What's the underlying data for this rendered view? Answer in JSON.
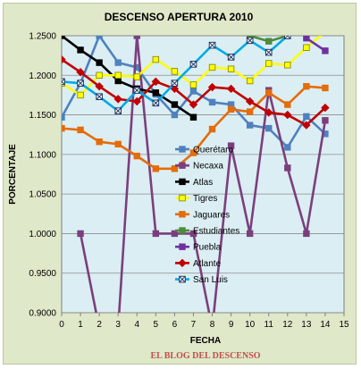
{
  "chart_data": {
    "type": "line",
    "title": "DESCENSO APERTURA 2010",
    "xlabel": "FECHA",
    "ylabel": "PORCENTAJE",
    "footer": "EL BLOG DEL DESCENSO",
    "xlim": [
      0,
      15
    ],
    "ylim": [
      0.9,
      1.25
    ],
    "xticks": [
      "0",
      "1",
      "2",
      "3",
      "4",
      "5",
      "6",
      "7",
      "8",
      "9",
      "10",
      "11",
      "12",
      "13",
      "14",
      "15"
    ],
    "yticks": [
      "0.9000",
      "0.9500",
      "1.0000",
      "1.0500",
      "1.1000",
      "1.1500",
      "1.2000",
      "1.2500"
    ],
    "grid": true,
    "legend_position": "center",
    "series": [
      {
        "name": "Querétaro",
        "color": "#4f81bd",
        "marker": "square",
        "x": [
          0,
          1,
          2,
          3,
          4,
          5,
          6,
          7,
          8,
          9,
          10,
          11,
          12,
          13,
          14
        ],
        "y": [
          1.147,
          1.19,
          1.25,
          1.216,
          1.21,
          1.176,
          1.15,
          1.18,
          1.166,
          1.163,
          1.137,
          1.133,
          1.109,
          1.148,
          1.126
        ]
      },
      {
        "name": "Necaxa",
        "color": "#7b3f7d",
        "marker": "square",
        "x": [
          1,
          2,
          3,
          4,
          5,
          6,
          7,
          8,
          9,
          10,
          11,
          12,
          13,
          14
        ],
        "y": [
          1.0,
          0.88,
          0.88,
          1.25,
          1.0,
          1.0,
          1.0,
          0.88,
          1.111,
          1.0,
          1.181,
          1.083,
          1.0,
          1.143
        ]
      },
      {
        "name": "Atlas",
        "color": "#000000",
        "marker": "square",
        "x": [
          0,
          1,
          2,
          3,
          4,
          5,
          6,
          7
        ],
        "y": [
          1.25,
          1.232,
          1.216,
          1.193,
          1.183,
          1.178,
          1.163,
          1.147
        ]
      },
      {
        "name": "Tigres",
        "color": "#ffff00",
        "marker": "square",
        "x": [
          0,
          1,
          2,
          3,
          4,
          5,
          6,
          7,
          8,
          9,
          10,
          11,
          12,
          13,
          14
        ],
        "y": [
          1.19,
          1.175,
          1.2,
          1.2,
          1.198,
          1.22,
          1.205,
          1.188,
          1.21,
          1.208,
          1.193,
          1.215,
          1.213,
          1.235,
          1.255
        ]
      },
      {
        "name": "Jaguares",
        "color": "#e46c0a",
        "marker": "square",
        "x": [
          0,
          1,
          2,
          3,
          4,
          5,
          6,
          7,
          8,
          9,
          10,
          11,
          12,
          13,
          14
        ],
        "y": [
          1.133,
          1.131,
          1.116,
          1.113,
          1.098,
          1.082,
          1.082,
          1.102,
          1.132,
          1.157,
          1.154,
          1.178,
          1.163,
          1.186,
          1.184
        ]
      },
      {
        "name": "Estudiantes",
        "color": "#4f8a3c",
        "marker": "square",
        "x": [
          10,
          11,
          12
        ],
        "y": [
          1.25,
          1.243,
          1.25
        ]
      },
      {
        "name": "Puebla",
        "color": "#7030a0",
        "marker": "square",
        "x": [
          13,
          14
        ],
        "y": [
          1.247,
          1.231
        ]
      },
      {
        "name": "Atlante",
        "color": "#c00000",
        "marker": "diamond",
        "x": [
          0,
          1,
          2,
          3,
          4,
          5,
          6,
          7,
          8,
          9,
          10,
          11,
          12,
          13,
          14
        ],
        "y": [
          1.22,
          1.204,
          1.186,
          1.17,
          1.167,
          1.192,
          1.183,
          1.163,
          1.185,
          1.183,
          1.167,
          1.153,
          1.15,
          1.137,
          1.159
        ]
      },
      {
        "name": "San Luis",
        "color": "#00a9e6",
        "marker": "x-square",
        "x": [
          0,
          1,
          2,
          3,
          4,
          5,
          6,
          7,
          8,
          9,
          10,
          11,
          12,
          13,
          14
        ],
        "y": [
          1.192,
          1.19,
          1.173,
          1.155,
          1.181,
          1.165,
          1.19,
          1.214,
          1.238,
          1.223,
          1.244,
          1.229,
          1.25,
          1.27,
          1.27
        ]
      }
    ]
  }
}
